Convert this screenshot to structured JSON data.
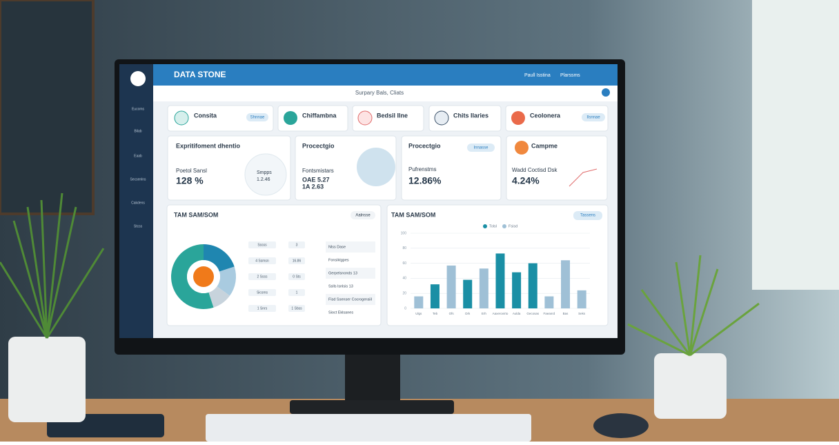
{
  "header": {
    "brand": "DATA STONE",
    "links": [
      "Paull Isstina",
      "Plarssms"
    ]
  },
  "toolbar": {
    "title": "Surpary Bals, Cliats"
  },
  "sidebar": [
    "Eucoms",
    "Bilab",
    "Eaab",
    "Secsenlns",
    "Cakdens",
    "Stcss"
  ],
  "cards": [
    {
      "title": "Consita",
      "button": "Shnnae"
    },
    {
      "title": "Chiffambna"
    },
    {
      "title": "Bedsil Ilne"
    },
    {
      "title": "Chits Ilaries"
    },
    {
      "title": "Ceolonera",
      "button": "Ilsnnae"
    }
  ],
  "kpis": [
    {
      "title": "Expritifoment dhentio",
      "label": "Poetol Sansl",
      "value": "128 %",
      "side_label": "Smpps",
      "side_value": "1.2.46"
    },
    {
      "title": "Procectgio",
      "label": "Fontsmistars",
      "value": "OAE 5.27",
      "value2": "1A 2.63"
    },
    {
      "title": "Procectgio",
      "button": "Innasse",
      "label": "Pufrenstms",
      "value": "12.86%"
    },
    {
      "title": "Campme",
      "label": "Wadd Coctisd Dsk",
      "value": "4.24%"
    }
  ],
  "tam": {
    "title": "TAM SAM/SOM",
    "button": "Aalnsse",
    "table": [
      [
        "Sssss",
        "3"
      ],
      [
        "4 Ssmsn",
        "16.86"
      ],
      [
        "2 Ssss",
        "0 Sts"
      ],
      [
        "Sicsms",
        "1"
      ],
      [
        "1 Snrs",
        "1 Sbss"
      ]
    ],
    "list": [
      "Nlss Dase",
      "Fonsiktgpes",
      "Gerpelsnonds 13",
      "Sslls lsnlsis 13",
      "Fisd Ssenser Cocrogeraiil",
      "Sioct Eklsanes"
    ]
  },
  "chart_data": [
    {
      "type": "pie",
      "values": [
        20,
        15,
        10,
        55
      ],
      "colors": [
        "#1f86b0",
        "#a9cbe0",
        "#c7d3dc",
        "#2aa59a"
      ]
    },
    {
      "type": "bar",
      "title": "TAM SAM/SOM",
      "button": "Tassens",
      "categories": [
        "Ulgs",
        "Teb",
        "Ofs",
        "Drk",
        "Erh",
        "Aaxerovirto",
        "Aulda",
        "Gecosas",
        "Faeanrd",
        "Bas",
        "Seks"
      ],
      "series": [
        {
          "name": "Tolsl",
          "color": "#1a8fa5",
          "values": [
            null,
            32,
            null,
            38,
            null,
            73,
            48,
            60,
            null,
            null,
            null
          ]
        },
        {
          "name": "Fsisd",
          "color": "#9fc0d6",
          "values": [
            16,
            null,
            57,
            null,
            53,
            null,
            null,
            null,
            16,
            64,
            24
          ]
        }
      ],
      "ylim": [
        0,
        100
      ],
      "yticks": [
        0,
        20,
        40,
        60,
        80,
        100
      ],
      "grid": true
    }
  ]
}
